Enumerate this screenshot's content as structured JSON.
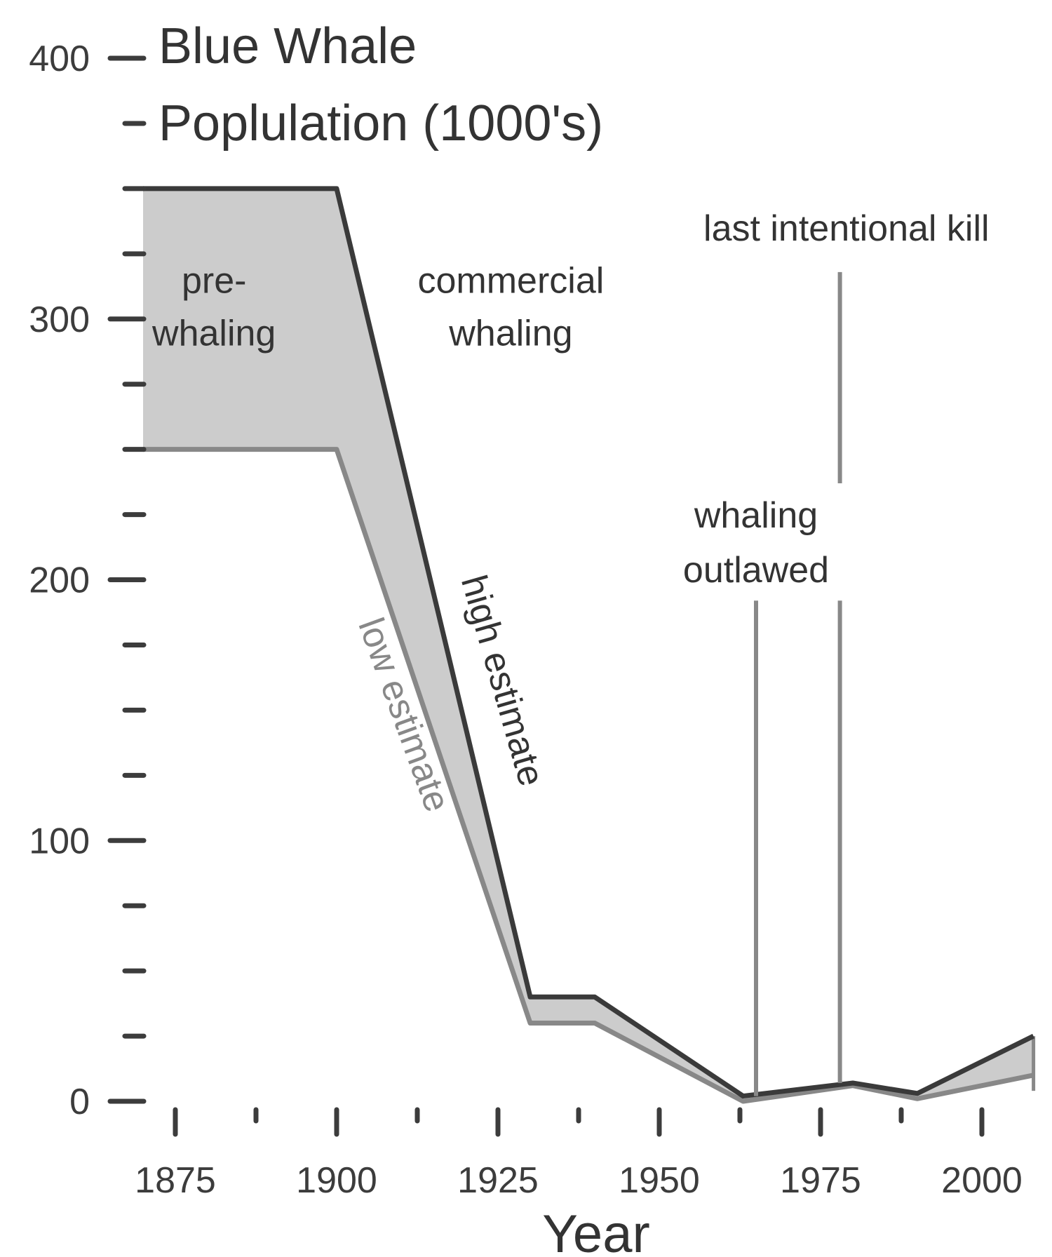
{
  "chart_data": {
    "type": "area",
    "title_lines": [
      "Blue Whale",
      "Poplulation (1000's)"
    ],
    "xlabel": "Year",
    "ylabel": "",
    "xlim": [
      1870,
      2008
    ],
    "ylim": [
      0,
      400
    ],
    "x_ticks": [
      {
        "value": 1875,
        "label": "1875"
      },
      {
        "value": 1887.5,
        "label": ""
      },
      {
        "value": 1900,
        "label": "1900"
      },
      {
        "value": 1912.5,
        "label": ""
      },
      {
        "value": 1925,
        "label": "1925"
      },
      {
        "value": 1937.5,
        "label": ""
      },
      {
        "value": 1950,
        "label": "1950"
      },
      {
        "value": 1962.5,
        "label": ""
      },
      {
        "value": 1975,
        "label": "1975"
      },
      {
        "value": 1987.5,
        "label": ""
      },
      {
        "value": 2000,
        "label": "2000"
      }
    ],
    "y_ticks": [
      {
        "value": 0,
        "label": "0",
        "major": true
      },
      {
        "value": 25,
        "label": "",
        "major": false
      },
      {
        "value": 50,
        "label": "",
        "major": false
      },
      {
        "value": 75,
        "label": "",
        "major": false
      },
      {
        "value": 100,
        "label": "100",
        "major": true
      },
      {
        "value": 125,
        "label": "",
        "major": false
      },
      {
        "value": 150,
        "label": "",
        "major": false
      },
      {
        "value": 175,
        "label": "",
        "major": false
      },
      {
        "value": 200,
        "label": "200",
        "major": true
      },
      {
        "value": 225,
        "label": "",
        "major": false
      },
      {
        "value": 250,
        "label": "",
        "major": false
      },
      {
        "value": 275,
        "label": "",
        "major": false
      },
      {
        "value": 300,
        "label": "300",
        "major": true
      },
      {
        "value": 325,
        "label": "",
        "major": false
      },
      {
        "value": 350,
        "label": "",
        "major": false
      },
      {
        "value": 375,
        "label": "",
        "major": false
      },
      {
        "value": 400,
        "label": "400",
        "major": true
      }
    ],
    "series": [
      {
        "name": "high estimate",
        "color": "#3a3a3a",
        "x": [
          1870,
          1900,
          1930,
          1940,
          1963,
          1980,
          1990,
          2008
        ],
        "y": [
          350,
          350,
          40,
          40,
          2,
          7,
          3,
          25
        ]
      },
      {
        "name": "low estimate",
        "color": "#888888",
        "x": [
          1870,
          1900,
          1930,
          1940,
          1963,
          1980,
          1990,
          2008
        ],
        "y": [
          250,
          250,
          30,
          30,
          0,
          6,
          1,
          10
        ]
      }
    ],
    "band_fill": "#cccccc",
    "period_labels": [
      {
        "lines": [
          "pre-",
          "whaling"
        ],
        "x": 1881,
        "y": 310
      },
      {
        "lines": [
          "commercial",
          "whaling"
        ],
        "x": 1927,
        "y": 310
      }
    ],
    "events": [
      {
        "label_lines": [
          "whaling",
          "outlawed"
        ],
        "year": 1965,
        "label_x": 1965,
        "label_y": 220
      },
      {
        "label_lines": [
          "last intentional kill"
        ],
        "year": 1978,
        "label_x": 1979,
        "label_y": 330
      }
    ],
    "event_color": "#888888"
  }
}
